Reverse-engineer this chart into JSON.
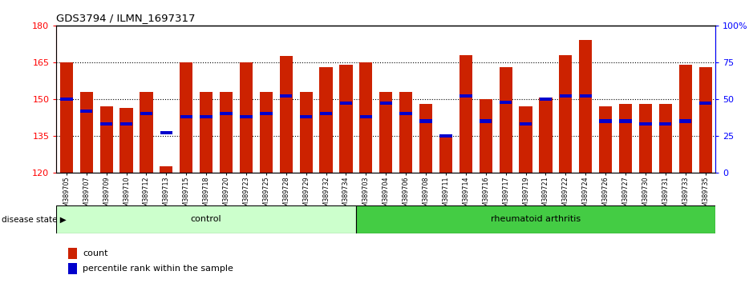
{
  "title": "GDS3794 / ILMN_1697317",
  "samples": [
    "GSM389705",
    "GSM389707",
    "GSM389709",
    "GSM389710",
    "GSM389712",
    "GSM389713",
    "GSM389715",
    "GSM389718",
    "GSM389720",
    "GSM389723",
    "GSM389725",
    "GSM389728",
    "GSM389729",
    "GSM389732",
    "GSM389734",
    "GSM389703",
    "GSM389704",
    "GSM389706",
    "GSM389708",
    "GSM389711",
    "GSM389714",
    "GSM389716",
    "GSM389717",
    "GSM389719",
    "GSM389721",
    "GSM389722",
    "GSM389724",
    "GSM389726",
    "GSM389727",
    "GSM389730",
    "GSM389731",
    "GSM389733",
    "GSM389735"
  ],
  "counts": [
    165.0,
    153.0,
    147.0,
    146.5,
    153.0,
    122.5,
    165.0,
    153.0,
    153.0,
    165.0,
    153.0,
    167.5,
    153.0,
    163.0,
    164.0,
    165.0,
    153.0,
    153.0,
    148.0,
    135.0,
    168.0,
    150.0,
    163.0,
    147.0,
    150.5,
    168.0,
    174.0,
    147.0,
    148.0,
    148.0,
    148.0,
    164.0,
    163.0
  ],
  "percentile_ranks": [
    50,
    42,
    33,
    33,
    40,
    27,
    38,
    38,
    40,
    38,
    40,
    52,
    38,
    40,
    47,
    38,
    47,
    40,
    35,
    25,
    52,
    35,
    48,
    33,
    50,
    52,
    52,
    35,
    35,
    33,
    33,
    35,
    47
  ],
  "ymin": 120,
  "ymax": 180,
  "yticks": [
    120,
    135,
    150,
    165,
    180
  ],
  "right_yticks": [
    0,
    25,
    50,
    75,
    100
  ],
  "control_count": 15,
  "rheumatoid_count": 18,
  "bar_color": "#cc2200",
  "percentile_color": "#0000cc",
  "control_bg": "#ccffcc",
  "rheumatoid_bg": "#44cc44",
  "legend_count_color": "#cc2200",
  "legend_pct_color": "#0000cc",
  "disease_label": "disease state",
  "control_label": "control",
  "rheumatoid_label": "rheumatoid arthritis"
}
